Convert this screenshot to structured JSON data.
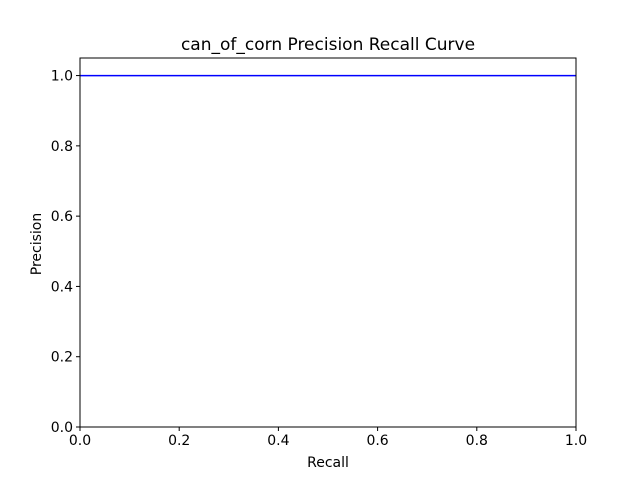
{
  "chart_data": {
    "type": "line",
    "title": "can_of_corn Precision Recall Curve",
    "xlabel": "Recall",
    "ylabel": "Precision",
    "xlim": [
      0.0,
      1.0
    ],
    "ylim": [
      0.0,
      1.05
    ],
    "xticks": [
      "0.0",
      "0.2",
      "0.4",
      "0.6",
      "0.8",
      "1.0"
    ],
    "yticks": [
      "0.0",
      "0.2",
      "0.4",
      "0.6",
      "0.8",
      "1.0"
    ],
    "grid": false,
    "series": [
      {
        "x": [
          0.0,
          1.0
        ],
        "y": [
          1.0,
          1.0
        ],
        "color": "#0000ff"
      }
    ]
  }
}
